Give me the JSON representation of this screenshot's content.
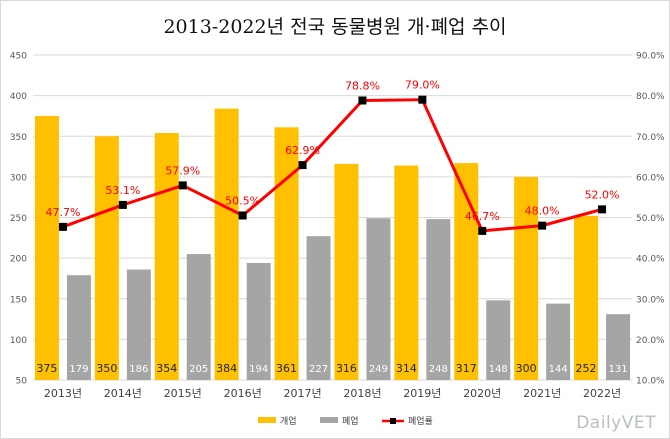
{
  "title": "2013-2022년 전국 동물병원 개·폐업 추이",
  "watermark": "DailyVET",
  "chart_data": {
    "type": "bar",
    "categories": [
      "2013년",
      "2014년",
      "2015년",
      "2016년",
      "2017년",
      "2018년",
      "2019년",
      "2020년",
      "2021년",
      "2022년"
    ],
    "series": [
      {
        "name": "개업",
        "type": "bar",
        "axis": "left",
        "color": "#FFC000",
        "values": [
          375,
          350,
          354,
          384,
          361,
          316,
          314,
          317,
          300,
          252
        ]
      },
      {
        "name": "폐업",
        "type": "bar",
        "axis": "left",
        "color": "#A5A5A5",
        "values": [
          179,
          186,
          205,
          194,
          227,
          249,
          248,
          148,
          144,
          131
        ]
      },
      {
        "name": "폐업률",
        "type": "line",
        "axis": "right",
        "color": "#FF0000",
        "values": [
          47.7,
          53.1,
          57.9,
          50.5,
          62.9,
          78.8,
          79.0,
          46.7,
          48.0,
          52.0
        ]
      }
    ],
    "y_left": {
      "min": 50,
      "max": 450,
      "step": 50
    },
    "y_right": {
      "min": 10,
      "max": 90,
      "step": 10,
      "format": "percent1"
    },
    "grid": true,
    "legend": "bottom"
  }
}
